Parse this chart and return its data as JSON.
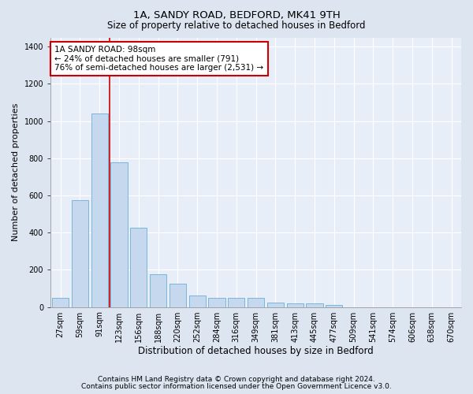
{
  "title1": "1A, SANDY ROAD, BEDFORD, MK41 9TH",
  "title2": "Size of property relative to detached houses in Bedford",
  "xlabel": "Distribution of detached houses by size in Bedford",
  "ylabel": "Number of detached properties",
  "categories": [
    "27sqm",
    "59sqm",
    "91sqm",
    "123sqm",
    "156sqm",
    "188sqm",
    "220sqm",
    "252sqm",
    "284sqm",
    "316sqm",
    "349sqm",
    "381sqm",
    "413sqm",
    "445sqm",
    "477sqm",
    "509sqm",
    "541sqm",
    "574sqm",
    "606sqm",
    "638sqm",
    "670sqm"
  ],
  "values": [
    47,
    575,
    1040,
    780,
    425,
    175,
    125,
    63,
    50,
    50,
    50,
    25,
    20,
    18,
    12,
    0,
    0,
    0,
    0,
    0,
    0
  ],
  "bar_color": "#c5d8ee",
  "bar_edgecolor": "#6baed6",
  "vline_color": "#cc0000",
  "vline_pos": 2.5,
  "annotation_text": "1A SANDY ROAD: 98sqm\n← 24% of detached houses are smaller (791)\n76% of semi-detached houses are larger (2,531) →",
  "annotation_box_facecolor": "#ffffff",
  "annotation_box_edgecolor": "#cc0000",
  "ylim": [
    0,
    1450
  ],
  "yticks": [
    0,
    200,
    400,
    600,
    800,
    1000,
    1200,
    1400
  ],
  "footnote1": "Contains HM Land Registry data © Crown copyright and database right 2024.",
  "footnote2": "Contains public sector information licensed under the Open Government Licence v3.0.",
  "bg_color": "#dde5f0",
  "plot_bg_color": "#e8eef8",
  "title1_fontsize": 9.5,
  "title2_fontsize": 8.5,
  "xlabel_fontsize": 8.5,
  "ylabel_fontsize": 8,
  "tick_fontsize": 7,
  "annotation_fontsize": 7.5,
  "footnote_fontsize": 6.5
}
